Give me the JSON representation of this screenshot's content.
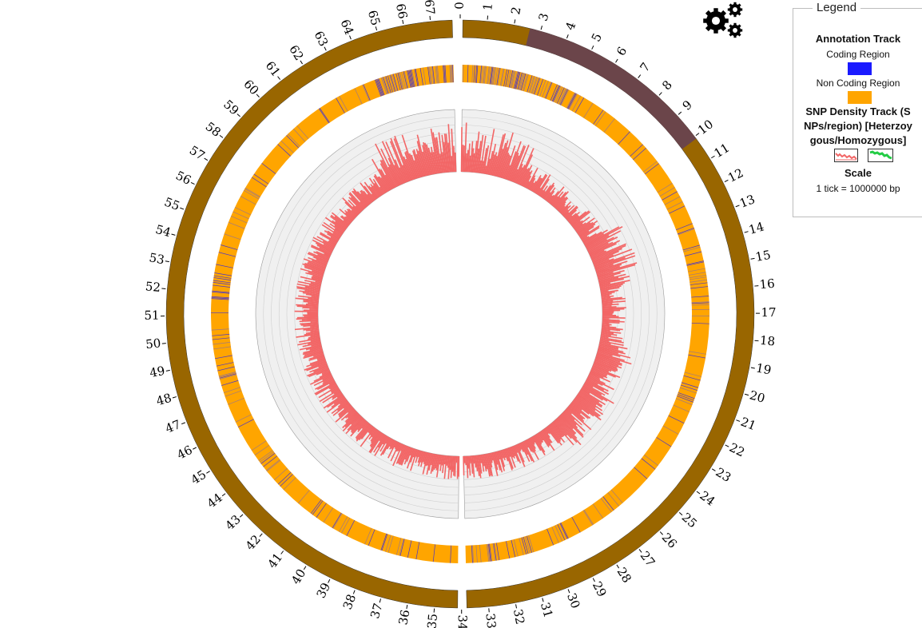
{
  "legend": {
    "title": "Legend",
    "annotation_track_label": "Annotation Track",
    "coding_region_label": "Coding Region",
    "non_coding_region_label": "Non Coding Region",
    "snp_track_line1": "SNP Density Track (S",
    "snp_track_line2": "NPs/region) [Heterzoy",
    "snp_track_line3": "gous/Homozygous]",
    "scale_label": "Scale",
    "scale_value": "1 tick = 1000000 bp"
  },
  "colors": {
    "chromosome": "#996600",
    "highlight": "#6b454a",
    "coding": "#1a1aff",
    "non_coding": "#ffa500",
    "snp": "#f26666",
    "track_bg": "#f0f0f0",
    "grid": "#cfcfcf"
  },
  "chart_data": {
    "type": "circos",
    "scale_unit_bp": 1000000,
    "tick_labels": [
      "0",
      "1",
      "2",
      "3",
      "4",
      "5",
      "6",
      "7",
      "8",
      "9",
      "10",
      "11",
      "12",
      "13",
      "14",
      "15",
      "16",
      "17",
      "18",
      "19",
      "20",
      "21",
      "22",
      "23",
      "24",
      "25",
      "26",
      "27",
      "28",
      "29",
      "30",
      "31",
      "32",
      "33",
      "34",
      "35",
      "36",
      "37",
      "38",
      "39",
      "40",
      "41",
      "42",
      "43",
      "44",
      "45",
      "46",
      "47",
      "48",
      "49",
      "50",
      "51",
      "52",
      "53",
      "54",
      "55",
      "56",
      "57",
      "58",
      "59",
      "60",
      "61",
      "62",
      "63",
      "64",
      "65",
      "66",
      "67"
    ],
    "segments": [
      {
        "start": 0,
        "end": 33.9
      },
      {
        "start": 34.05,
        "end": 67.9
      }
    ],
    "highlight_region": {
      "start": 2.6,
      "end": 10.1
    },
    "icons": [
      "gear-icon"
    ]
  }
}
